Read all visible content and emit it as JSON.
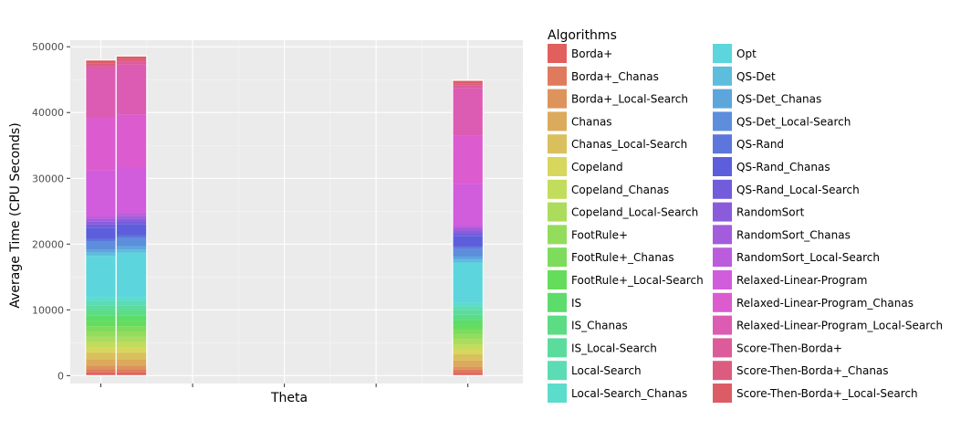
{
  "chart_data": {
    "type": "bar",
    "stacked": true,
    "xlabel": "Theta",
    "ylabel": "Average Time (CPU Seconds)",
    "ylim": [
      -1200,
      51000
    ],
    "yticks": [
      0,
      10000,
      20000,
      30000,
      40000,
      50000
    ],
    "ytick_labels": [
      "0",
      "10000",
      "20000",
      "30000",
      "40000",
      "50000"
    ],
    "xlim": [
      0,
      0.925
    ],
    "xticks": [
      0.0625,
      0.25,
      0.4375,
      0.625,
      0.8125
    ],
    "xtick_labels": [
      "",
      "",
      "",
      "",
      ""
    ],
    "grid": true,
    "background": "#ebebeb",
    "legend": {
      "title": "Algorithms",
      "placement": "right",
      "columns": 2
    },
    "bar_width": 0.0625,
    "x": [
      0.0625,
      0.125,
      0.8125
    ],
    "series": [
      {
        "name": "Borda+",
        "color": "#e1605d",
        "values": [
          500,
          500,
          450
        ]
      },
      {
        "name": "Borda+_Chanas",
        "color": "#df7a5c",
        "values": [
          500,
          500,
          450
        ]
      },
      {
        "name": "Borda+_Local-Search",
        "color": "#dd935c",
        "values": [
          500,
          500,
          450
        ]
      },
      {
        "name": "Chanas",
        "color": "#dcaa5c",
        "values": [
          1000,
          1000,
          950
        ]
      },
      {
        "name": "Chanas_Local-Search",
        "color": "#d9c05c",
        "values": [
          1000,
          1000,
          950
        ]
      },
      {
        "name": "Copeland",
        "color": "#d6d75c",
        "values": [
          800,
          800,
          750
        ]
      },
      {
        "name": "Copeland_Chanas",
        "color": "#c2dc5c",
        "values": [
          800,
          800,
          750
        ]
      },
      {
        "name": "Copeland_Local-Search",
        "color": "#abdc5c",
        "values": [
          800,
          800,
          750
        ]
      },
      {
        "name": "FootRule+",
        "color": "#94dc5c",
        "values": [
          800,
          800,
          750
        ]
      },
      {
        "name": "FootRule+_Chanas",
        "color": "#7ddc5c",
        "values": [
          800,
          800,
          750
        ]
      },
      {
        "name": "FootRule+_Local-Search",
        "color": "#66dc5c",
        "values": [
          800,
          800,
          750
        ]
      },
      {
        "name": "IS",
        "color": "#5cdc6b",
        "values": [
          800,
          800,
          750
        ]
      },
      {
        "name": "IS_Chanas",
        "color": "#5cdc84",
        "values": [
          800,
          800,
          750
        ]
      },
      {
        "name": "IS_Local-Search",
        "color": "#5cdc9c",
        "values": [
          800,
          800,
          750
        ]
      },
      {
        "name": "Local-Search",
        "color": "#5cdcb4",
        "values": [
          600,
          600,
          550
        ]
      },
      {
        "name": "Local-Search_Chanas",
        "color": "#5cdccb",
        "values": [
          600,
          600,
          550
        ]
      },
      {
        "name": "Opt",
        "color": "#5cd6dc",
        "values": [
          6300,
          6800,
          6100
        ]
      },
      {
        "name": "QS-Det",
        "color": "#5cbedc",
        "values": [
          500,
          500,
          450
        ]
      },
      {
        "name": "QS-Det_Chanas",
        "color": "#5ca6dc",
        "values": [
          500,
          500,
          450
        ]
      },
      {
        "name": "QS-Det_Local-Search",
        "color": "#5c8edc",
        "values": [
          1200,
          1200,
          1150
        ]
      },
      {
        "name": "QS-Rand",
        "color": "#5c76dc",
        "values": [
          400,
          400,
          350
        ]
      },
      {
        "name": "QS-Rand_Chanas",
        "color": "#5c5edc",
        "values": [
          1700,
          1700,
          1650
        ]
      },
      {
        "name": "QS-Rand_Local-Search",
        "color": "#725cdc",
        "values": [
          500,
          500,
          450
        ]
      },
      {
        "name": "RandomSort",
        "color": "#8a5cdc",
        "values": [
          400,
          400,
          350
        ]
      },
      {
        "name": "RandomSort_Chanas",
        "color": "#a25cdc",
        "values": [
          400,
          400,
          350
        ]
      },
      {
        "name": "RandomSort_Local-Search",
        "color": "#ba5cdc",
        "values": [
          400,
          400,
          350
        ]
      },
      {
        "name": "Relaxed-Linear-Program",
        "color": "#d15cdc",
        "values": [
          7000,
          7000,
          6400
        ]
      },
      {
        "name": "Relaxed-Linear-Program_Chanas",
        "color": "#dc5cd0",
        "values": [
          8000,
          8000,
          7400
        ]
      },
      {
        "name": "Relaxed-Linear-Program_Local-Search",
        "color": "#dc5cb3",
        "values": [
          7500,
          7600,
          7200
        ]
      },
      {
        "name": "Score-Then-Borda+",
        "color": "#dc5c99",
        "values": [
          400,
          400,
          350
        ]
      },
      {
        "name": "Score-Then-Borda+_Chanas",
        "color": "#dc5c80",
        "values": [
          400,
          400,
          350
        ]
      },
      {
        "name": "Score-Then-Borda+_Local-Search",
        "color": "#dc5c66",
        "values": [
          500,
          500,
          450
        ]
      }
    ]
  }
}
